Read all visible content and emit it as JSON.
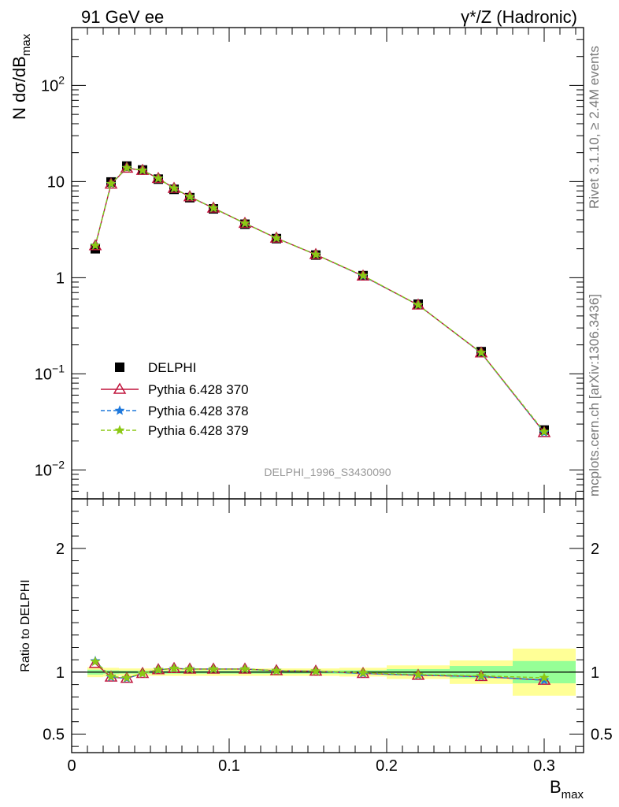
{
  "header": {
    "left": "91 GeV ee",
    "right": "γ*/Z (Hadronic)"
  },
  "side_labels": {
    "rivet": "Rivet 3.1.10, ≥ 2.4M events",
    "mcplots": "mcplots.cern.ch [arXiv:1306.3436]"
  },
  "watermark": "DELPHI_1996_S3430090",
  "chart_data": [
    {
      "type": "scatter",
      "panel": "main",
      "ylabel": "N dσ/dB_max",
      "yscale": "log",
      "ylim": [
        0.005,
        400
      ],
      "xlim": [
        0,
        0.325
      ],
      "y_ticks": [
        {
          "value": 0.01,
          "base": "10",
          "exp": "−2"
        },
        {
          "value": 0.1,
          "base": "10",
          "exp": "−1"
        },
        {
          "value": 1,
          "base": "1",
          "exp": ""
        },
        {
          "value": 10,
          "base": "10",
          "exp": ""
        },
        {
          "value": 100,
          "base": "10",
          "exp": "2"
        }
      ],
      "x": [
        0.015,
        0.025,
        0.035,
        0.045,
        0.055,
        0.065,
        0.075,
        0.09,
        0.11,
        0.13,
        0.155,
        0.185,
        0.22,
        0.26,
        0.3
      ],
      "series": [
        {
          "name": "DELPHI",
          "marker": "square",
          "color": "#000000",
          "values": [
            2.0,
            9.9,
            14.5,
            13.2,
            10.6,
            8.3,
            6.8,
            5.2,
            3.6,
            2.55,
            1.72,
            1.05,
            0.53,
            0.17,
            0.026
          ]
        },
        {
          "name": "Pythia 6.428 370",
          "marker": "triangle",
          "color": "#c0143c",
          "dash": "solid",
          "values": [
            2.15,
            9.4,
            13.8,
            13.1,
            10.8,
            8.5,
            6.95,
            5.3,
            3.68,
            2.58,
            1.74,
            1.04,
            0.52,
            0.165,
            0.0245
          ]
        },
        {
          "name": "Pythia 6.428 378",
          "marker": "star",
          "color": "#1e78dc",
          "dash": "dashed",
          "values": [
            2.17,
            9.45,
            13.9,
            13.1,
            10.8,
            8.5,
            6.95,
            5.3,
            3.68,
            2.58,
            1.74,
            1.04,
            0.52,
            0.165,
            0.0245
          ]
        },
        {
          "name": "Pythia 6.428 379",
          "marker": "star",
          "color": "#8cc814",
          "dash": "dashed",
          "values": [
            2.16,
            9.5,
            13.9,
            13.1,
            10.8,
            8.5,
            6.95,
            5.3,
            3.68,
            2.58,
            1.74,
            1.05,
            0.52,
            0.166,
            0.025
          ]
        }
      ]
    },
    {
      "type": "scatter",
      "panel": "ratio",
      "ylabel": "Ratio to DELPHI",
      "xlabel": "B_max",
      "ylim": [
        0.35,
        2.4
      ],
      "xlim": [
        0,
        0.325
      ],
      "y_ticks": [
        0.5,
        1,
        2
      ],
      "y_tick_labels": [
        "0.5",
        "1",
        "2"
      ],
      "x_ticks": [
        0,
        0.1,
        0.2,
        0.3
      ],
      "x_tick_labels": [
        "0",
        "0.1",
        "0.2",
        "0.3"
      ],
      "bins": [
        [
          0.01,
          0.02
        ],
        [
          0.02,
          0.03
        ],
        [
          0.03,
          0.04
        ],
        [
          0.04,
          0.05
        ],
        [
          0.05,
          0.06
        ],
        [
          0.06,
          0.07
        ],
        [
          0.07,
          0.08
        ],
        [
          0.08,
          0.1
        ],
        [
          0.1,
          0.12
        ],
        [
          0.12,
          0.14
        ],
        [
          0.14,
          0.17
        ],
        [
          0.17,
          0.2
        ],
        [
          0.2,
          0.24
        ],
        [
          0.24,
          0.28
        ],
        [
          0.28,
          0.32
        ]
      ],
      "band_stat": [
        0.02,
        0.015,
        0.012,
        0.012,
        0.012,
        0.012,
        0.012,
        0.012,
        0.012,
        0.012,
        0.012,
        0.015,
        0.025,
        0.05,
        0.09
      ],
      "band_total": [
        0.04,
        0.035,
        0.03,
        0.03,
        0.03,
        0.03,
        0.03,
        0.03,
        0.03,
        0.03,
        0.03,
        0.035,
        0.055,
        0.095,
        0.19
      ],
      "x": [
        0.015,
        0.025,
        0.035,
        0.045,
        0.055,
        0.065,
        0.075,
        0.09,
        0.11,
        0.13,
        0.155,
        0.185,
        0.22,
        0.26,
        0.3
      ],
      "series": [
        {
          "name": "Pythia 6.428 370",
          "marker": "triangle",
          "color": "#c0143c",
          "dash": "solid",
          "values": [
            1.07,
            0.96,
            0.95,
            0.99,
            1.02,
            1.03,
            1.025,
            1.025,
            1.025,
            1.012,
            1.008,
            0.99,
            0.975,
            0.965,
            0.935
          ]
        },
        {
          "name": "Pythia 6.428 378",
          "marker": "star",
          "color": "#1e78dc",
          "dash": "dashed",
          "values": [
            1.09,
            0.96,
            0.95,
            0.99,
            1.02,
            1.03,
            1.025,
            1.025,
            1.025,
            1.012,
            1.008,
            0.99,
            0.975,
            0.965,
            0.935
          ]
        },
        {
          "name": "Pythia 6.428 379",
          "marker": "star",
          "color": "#8cc814",
          "dash": "dashed",
          "values": [
            1.085,
            0.965,
            0.955,
            0.99,
            1.02,
            1.03,
            1.025,
            1.025,
            1.025,
            1.012,
            1.008,
            0.995,
            0.98,
            0.97,
            0.955
          ]
        }
      ]
    }
  ],
  "colors": {
    "band_total": "#ffff96",
    "band_stat": "#96ff96",
    "watermark": "#999999",
    "side_text": "#777777"
  }
}
